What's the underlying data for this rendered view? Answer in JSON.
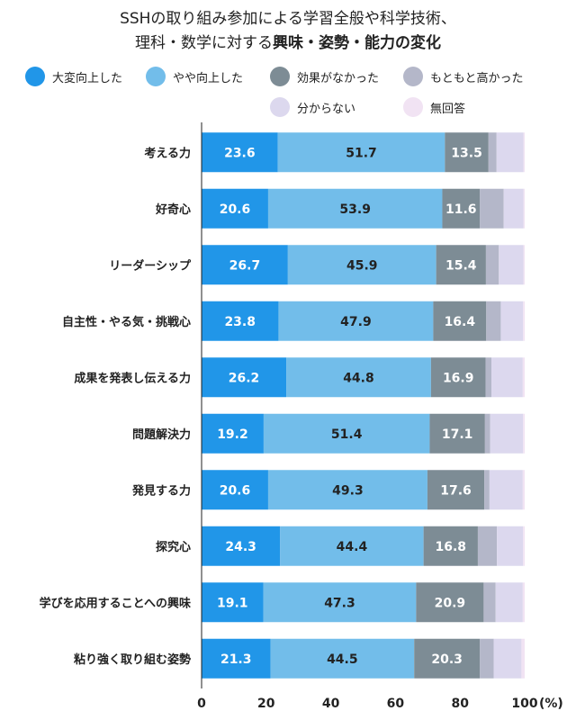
{
  "title": {
    "line1": "SSHの取り組み参加による学習全般や科学技術、",
    "line2_normal": "理科・数学に対する",
    "line2_bold": "興味・姿勢・能力の変化"
  },
  "colors": {
    "series": [
      "#2196e8",
      "#72bdea",
      "#7d8c95",
      "#b4b7c9",
      "#dcd8ee",
      "#f1e3f3"
    ],
    "label_light": "#ffffff",
    "label_dark": "#222222",
    "axis": "#222222"
  },
  "chart_data": {
    "type": "bar",
    "orientation": "horizontal",
    "stacked": true,
    "title": "SSHの取り組み参加による学習全般や科学技術、理科・数学に対する興味・姿勢・能力の変化",
    "categories": [
      "考える力",
      "好奇心",
      "リーダーシップ",
      "自主性・やる気・挑戦心",
      "成果を発表し伝える力",
      "問題解決力",
      "発見する力",
      "探究心",
      "学びを応用することへの興味",
      "粘り強く取り組む姿勢"
    ],
    "series": [
      {
        "name": "大変向上した",
        "values": [
          23.6,
          20.6,
          26.7,
          23.8,
          26.2,
          19.2,
          20.6,
          24.3,
          19.1,
          21.3
        ]
      },
      {
        "name": "やや向上した",
        "values": [
          51.7,
          53.9,
          45.9,
          47.9,
          44.8,
          51.4,
          49.3,
          44.4,
          47.3,
          44.5
        ]
      },
      {
        "name": "効果がなかった",
        "values": [
          13.5,
          11.6,
          15.4,
          16.4,
          16.9,
          17.1,
          17.6,
          16.8,
          20.9,
          20.3
        ]
      },
      {
        "name": "もともと高かった",
        "values": [
          2.5,
          7.4,
          4.0,
          4.5,
          1.8,
          1.6,
          1.6,
          5.9,
          3.7,
          4.3
        ]
      },
      {
        "name": "分からない",
        "values": [
          8.3,
          6.1,
          7.6,
          6.9,
          9.7,
          10.2,
          10.3,
          8.1,
          8.4,
          8.6
        ]
      },
      {
        "name": "無回答",
        "values": [
          0.4,
          0.4,
          0.4,
          0.5,
          0.6,
          0.5,
          0.6,
          0.5,
          0.6,
          1.0
        ]
      }
    ],
    "labeled_series": [
      0,
      1,
      2
    ],
    "xlim": [
      0,
      100
    ],
    "xticks": [
      0,
      20,
      40,
      60,
      80,
      100
    ],
    "xunit": "(%)",
    "legend_position": "top"
  }
}
